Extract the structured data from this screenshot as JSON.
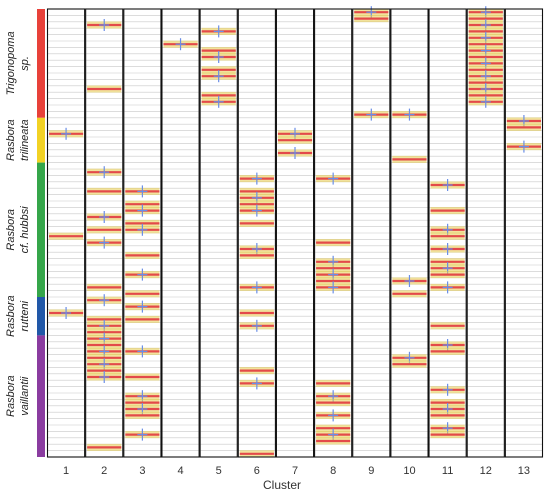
{
  "chart_data": {
    "type": "heatmap",
    "title": "",
    "xlabel": "Cluster",
    "ylabel": "",
    "clusters": [
      "1",
      "2",
      "3",
      "4",
      "5",
      "6",
      "7",
      "8",
      "9",
      "10",
      "11",
      "12",
      "13"
    ],
    "n_rows": 70,
    "species": [
      {
        "lines": [
          "Trigonopoma",
          "sp."
        ],
        "color": "#e8413a",
        "rows": [
          0,
          17
        ]
      },
      {
        "lines": [
          "Rasbora",
          "trilineata"
        ],
        "color": "#f2d224",
        "rows": [
          17,
          24
        ]
      },
      {
        "lines": [
          "Rasbora",
          "cf. hubbsi"
        ],
        "color": "#35a64a",
        "rows": [
          24,
          45
        ]
      },
      {
        "lines": [
          "Rasbora",
          "rutteni"
        ],
        "color": "#2158a8",
        "rows": [
          45,
          51
        ]
      },
      {
        "lines": [
          "Rasbora",
          "vaillantii"
        ],
        "color": "#8a3ca0",
        "rows": [
          51,
          70
        ]
      }
    ],
    "marks_rows": [
      [
        19,
        35,
        47
      ],
      [
        2,
        12,
        25,
        28,
        32,
        34,
        36,
        43,
        45,
        48,
        49,
        50,
        51,
        52,
        53,
        54,
        55,
        56,
        57,
        68
      ],
      [
        28,
        30,
        31,
        33,
        34,
        38,
        41,
        44,
        46,
        48,
        53,
        57,
        60,
        61,
        62,
        63,
        66
      ],
      [
        5
      ],
      [
        3,
        6,
        7,
        9,
        10,
        13,
        14
      ],
      [
        26,
        28,
        29,
        30,
        31,
        33,
        37,
        38,
        43,
        47,
        49,
        56,
        58,
        69
      ],
      [
        19,
        20,
        22
      ],
      [
        26,
        36,
        39,
        40,
        41,
        42,
        43,
        58,
        60,
        61,
        63,
        65,
        66,
        67
      ],
      [
        0,
        1,
        16
      ],
      [
        16,
        23,
        42,
        44,
        54,
        55
      ],
      [
        27,
        31,
        34,
        35,
        37,
        39,
        40,
        41,
        43,
        49,
        52,
        53,
        59,
        61,
        62,
        63,
        65,
        66
      ],
      [
        0,
        1,
        2,
        3,
        4,
        5,
        6,
        7,
        8,
        9,
        10,
        11,
        12,
        13,
        14
      ],
      [
        17,
        18,
        21
      ]
    ],
    "colors": {
      "mark": "#e34a4a",
      "stripe": "#e8cc4a",
      "cross": "#6a8ee6",
      "grid": "#c8c8c8"
    }
  }
}
